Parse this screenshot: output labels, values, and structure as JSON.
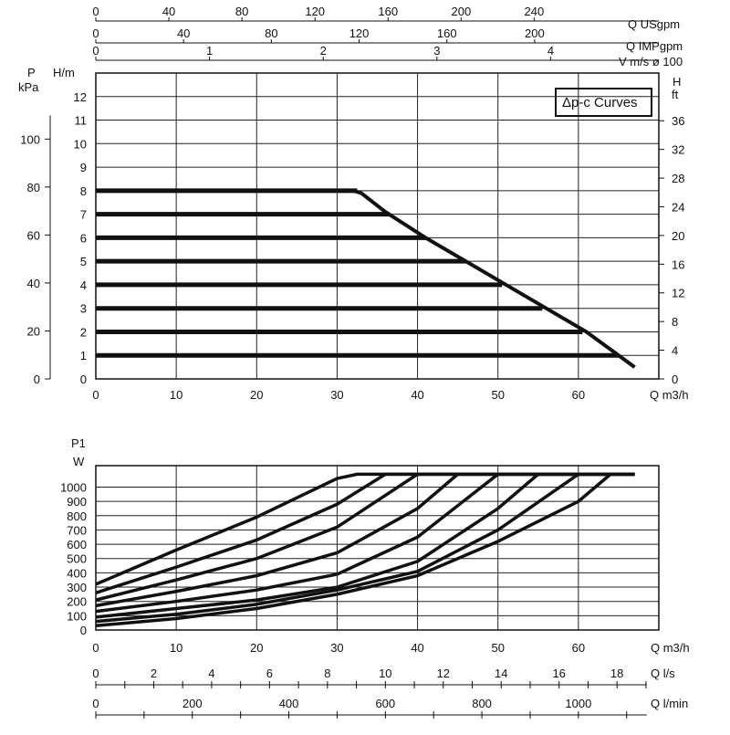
{
  "chart_data": [
    {
      "type": "line",
      "title": "Δp-c Curves",
      "xlabel": "Q m3/h",
      "x_ticks": [
        "0",
        "10",
        "20",
        "30",
        "40",
        "50",
        "60"
      ],
      "xlim": [
        0,
        70
      ],
      "ylim": [
        0,
        13
      ],
      "left_axis_H": {
        "label": "H/m",
        "ticks": [
          "0",
          "1",
          "2",
          "3",
          "4",
          "5",
          "6",
          "7",
          "8",
          "9",
          "10",
          "11",
          "12"
        ]
      },
      "left_axis_P": {
        "label_line1": "P",
        "label_line2": "kPa",
        "ticks": [
          "0",
          "20",
          "40",
          "60",
          "80",
          "100"
        ]
      },
      "right_axis": {
        "label_line1": "H",
        "label_line2": "ft",
        "ticks": [
          "0",
          "4",
          "8",
          "12",
          "16",
          "20",
          "24",
          "28",
          "32",
          "36"
        ]
      },
      "top_axes": [
        {
          "label": "Q USgpm",
          "ticks": [
            "0",
            "40",
            "80",
            "120",
            "160",
            "200",
            "240"
          ]
        },
        {
          "label": "Q IMPgpm",
          "ticks": [
            "0",
            "40",
            "80",
            "120",
            "160",
            "200"
          ]
        },
        {
          "label": "V m/s ø  100",
          "ticks": [
            "0",
            "1",
            "2",
            "3",
            "4"
          ]
        }
      ],
      "grid": true,
      "series": [
        {
          "head": 8,
          "x": [
            0,
            32.5
          ],
          "y": [
            8,
            8
          ]
        },
        {
          "head": 7,
          "x": [
            0,
            36.5
          ],
          "y": [
            7,
            7
          ]
        },
        {
          "head": 6,
          "x": [
            0,
            41
          ],
          "y": [
            6,
            6
          ]
        },
        {
          "head": 5,
          "x": [
            0,
            46
          ],
          "y": [
            5,
            5
          ]
        },
        {
          "head": 4,
          "x": [
            0,
            50.5
          ],
          "y": [
            4,
            4
          ]
        },
        {
          "head": 3,
          "x": [
            0,
            55.5
          ],
          "y": [
            3,
            3
          ]
        },
        {
          "head": 2,
          "x": [
            0,
            60.5
          ],
          "y": [
            2,
            2
          ]
        },
        {
          "head": 1,
          "x": [
            0,
            65
          ],
          "y": [
            1,
            1
          ]
        }
      ],
      "max_curve": {
        "x": [
          0,
          32,
          33,
          36,
          41,
          46,
          51,
          56,
          61,
          65,
          67
        ],
        "y": [
          8,
          8,
          7.9,
          7.1,
          6,
          5,
          4,
          3,
          2,
          1,
          0.5
        ]
      }
    },
    {
      "type": "line",
      "ylabel_line1": "P1",
      "ylabel_line2": "W",
      "xlabel": "Q m3/h",
      "x_ticks": [
        "0",
        "10",
        "20",
        "30",
        "40",
        "50",
        "60"
      ],
      "xlim": [
        0,
        70
      ],
      "y_ticks": [
        "0",
        "100",
        "200",
        "300",
        "400",
        "500",
        "600",
        "700",
        "800",
        "900",
        "1000"
      ],
      "ylim": [
        0,
        1150
      ],
      "grid": true,
      "bottom_axes": [
        {
          "label": "Q l/s",
          "ticks": [
            "0",
            "2",
            "4",
            "6",
            "8",
            "10",
            "12",
            "14",
            "16",
            "18"
          ]
        },
        {
          "label": "Q l/min",
          "ticks": [
            "0",
            "200",
            "400",
            "600",
            "800",
            "1000"
          ]
        }
      ],
      "max_power": 1090,
      "series": [
        {
          "x": [
            0,
            10,
            20,
            30,
            32.5,
            67
          ],
          "y": [
            320,
            560,
            790,
            1060,
            1090,
            1090
          ]
        },
        {
          "x": [
            0,
            10,
            20,
            30,
            36,
            67
          ],
          "y": [
            260,
            440,
            630,
            880,
            1090,
            1090
          ]
        },
        {
          "x": [
            0,
            10,
            20,
            30,
            40,
            67
          ],
          "y": [
            210,
            350,
            500,
            720,
            1090,
            1090
          ]
        },
        {
          "x": [
            0,
            10,
            20,
            30,
            40,
            45,
            67
          ],
          "y": [
            170,
            270,
            380,
            540,
            850,
            1090,
            1090
          ]
        },
        {
          "x": [
            0,
            10,
            20,
            30,
            40,
            50,
            67
          ],
          "y": [
            130,
            200,
            280,
            390,
            650,
            1090,
            1090
          ]
        },
        {
          "x": [
            0,
            10,
            20,
            30,
            40,
            50,
            55,
            67
          ],
          "y": [
            90,
            150,
            210,
            300,
            480,
            850,
            1090,
            1090
          ]
        },
        {
          "x": [
            0,
            10,
            20,
            30,
            40,
            50,
            60,
            67
          ],
          "y": [
            60,
            110,
            180,
            280,
            410,
            700,
            1090,
            1090
          ]
        },
        {
          "x": [
            0,
            10,
            20,
            30,
            40,
            50,
            60,
            64
          ],
          "y": [
            30,
            80,
            150,
            250,
            380,
            620,
            900,
            1090
          ]
        }
      ]
    }
  ]
}
